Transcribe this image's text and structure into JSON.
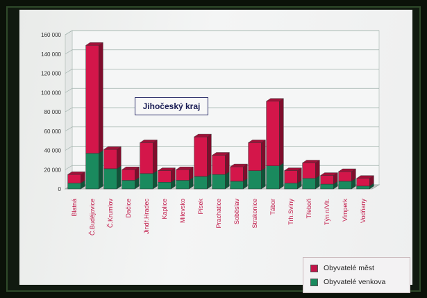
{
  "chart_data": {
    "type": "bar",
    "stacked": true,
    "title": "Jihočeský kraj",
    "categories": [
      "Blatná",
      "Č.Budějovice",
      "Č.Krumlov",
      "Dačice",
      "Jindř.Hradec",
      "Kaplice",
      "Milevsko",
      "Písek",
      "Prachatice",
      "Soběslav",
      "Strakonice",
      "Tábor",
      "Trh.Sviny",
      "Třeboň",
      "Týn n/Vlt.",
      "Vimperk",
      "Vodňany"
    ],
    "series": [
      {
        "name": "Obyvatelé venkova",
        "color": "#1a8a5e",
        "values": [
          6000,
          37000,
          21000,
          9000,
          16000,
          7000,
          9000,
          13000,
          15000,
          8000,
          19000,
          24000,
          6000,
          11000,
          5000,
          8000,
          3000
        ]
      },
      {
        "name": "Obyvatelé měst",
        "color": "#d4164a",
        "values": [
          9000,
          112000,
          20000,
          11000,
          32000,
          12000,
          11000,
          41000,
          20000,
          15000,
          29000,
          67000,
          13000,
          16000,
          9000,
          10000,
          8000
        ]
      }
    ],
    "ylim": [
      0,
      160000
    ],
    "yticks": [
      0,
      20000,
      40000,
      60000,
      80000,
      100000,
      120000,
      140000,
      160000
    ],
    "ytick_labels": [
      "0",
      "20 000",
      "40 000",
      "60 000",
      "80 000",
      "100 000",
      "120 000",
      "140 000",
      "160 000"
    ],
    "legend_position": "bottom-right",
    "grid": true
  },
  "legend": {
    "cities_label": "Obyvatelé měst",
    "rural_label": "Obyvatelé venkova"
  },
  "colors": {
    "cities": "#d4164a",
    "rural": "#1a8a5e"
  }
}
